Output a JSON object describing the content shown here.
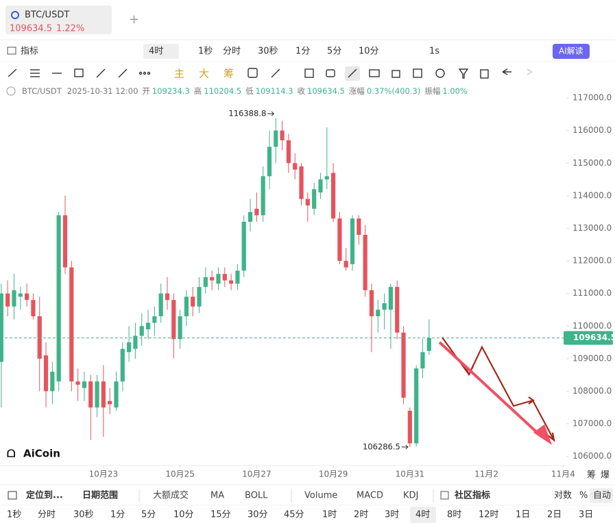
{
  "tab": {
    "symbol": "BTC/USDT",
    "price": "109634.5",
    "change": "1.22%"
  },
  "toolbar": {
    "indicator": "指标",
    "interval_button": "4时",
    "intervals": [
      "1秒",
      "分时",
      "30秒",
      "1分",
      "5分",
      "10分"
    ],
    "speed": "1s",
    "ai": "AI解读"
  },
  "draw_tools": [
    "主",
    "大",
    "筹"
  ],
  "info_bar": {
    "symbol": "BTC/USDT",
    "time": "2025-10-31 12:00",
    "fields": [
      {
        "label": "开",
        "value": "109234.3"
      },
      {
        "label": "高",
        "value": "110204.5"
      },
      {
        "label": "低",
        "value": "109114.3"
      },
      {
        "label": "收",
        "value": "109634.5"
      },
      {
        "label": "涨幅",
        "value": "0.37%(400.3)"
      },
      {
        "label": "振幅",
        "value": "1.00%"
      }
    ]
  },
  "chart_data": {
    "type": "candlestick",
    "up_color": "#3fb38a",
    "down_color": "#e5545d",
    "open": [
      108900,
      111000,
      110600,
      110900,
      111000,
      110800,
      110300,
      109100,
      108000,
      108300,
      113400,
      111800,
      108300,
      108100,
      108300,
      107500,
      108300,
      107700,
      107500,
      108300,
      109200,
      109300,
      109700,
      109900,
      110100,
      110300,
      111000,
      110800,
      109600,
      110300,
      110900,
      110600,
      111200,
      111500,
      111300,
      111600,
      111400,
      111300,
      111700,
      113200,
      113600,
      113400,
      114600,
      115500,
      116000,
      115700,
      115000,
      114900,
      113900,
      113600,
      114100,
      114500,
      114700,
      113300,
      112000,
      111900,
      113300,
      112800,
      111100,
      110300,
      110500,
      110500,
      111200,
      109800,
      107400,
      106400,
      108700,
      109234.3
    ],
    "high": [
      111300,
      111400,
      111600,
      111200,
      111300,
      111000,
      110900,
      109500,
      108900,
      113500,
      114000,
      112000,
      108700,
      108600,
      108500,
      108500,
      108800,
      108100,
      108600,
      109500,
      110000,
      110100,
      110400,
      110500,
      110600,
      111300,
      111500,
      111000,
      110500,
      111100,
      111200,
      111500,
      111800,
      111700,
      111800,
      111800,
      111600,
      111900,
      113400,
      113900,
      114100,
      114900,
      116000,
      116388.8,
      116300,
      115900,
      115300,
      115000,
      114100,
      114400,
      114700,
      116100,
      115000,
      113500,
      112400,
      113400,
      113400,
      113100,
      111300,
      110800,
      111000,
      111300,
      111400,
      110000,
      107500,
      108800,
      109600,
      110204.5
    ],
    "low": [
      107500,
      110300,
      110200,
      110500,
      110600,
      110200,
      108000,
      107500,
      107600,
      108000,
      111600,
      108000,
      107700,
      107700,
      106500,
      107200,
      106600,
      107300,
      107400,
      108000,
      108900,
      109000,
      109400,
      109600,
      109700,
      110100,
      110500,
      109000,
      109300,
      110000,
      110300,
      110400,
      111000,
      111100,
      111100,
      111200,
      111100,
      111100,
      111500,
      112900,
      113200,
      113200,
      114200,
      115000,
      115400,
      114700,
      114500,
      113700,
      113200,
      113400,
      113900,
      114200,
      113200,
      111900,
      111700,
      111700,
      112500,
      110900,
      109200,
      109800,
      109900,
      109300,
      109600,
      107600,
      106286.5,
      106300,
      108400,
      109114.3
    ],
    "close": [
      111000,
      110600,
      111100,
      111000,
      110800,
      110300,
      109000,
      108000,
      108600,
      113400,
      111800,
      108300,
      108200,
      108300,
      107500,
      108300,
      107500,
      107600,
      108300,
      109300,
      109500,
      109700,
      110000,
      110100,
      110300,
      111000,
      110800,
      109600,
      110300,
      110900,
      110600,
      111200,
      111500,
      111400,
      111600,
      111400,
      111300,
      111700,
      113200,
      113500,
      113400,
      114600,
      115500,
      116000,
      115700,
      115000,
      114800,
      113900,
      113700,
      114200,
      114500,
      114600,
      113300,
      112000,
      111800,
      113300,
      112800,
      111100,
      110300,
      110500,
      110700,
      111200,
      109800,
      107800,
      106400,
      108700,
      109200,
      109634.5
    ],
    "xlim": [
      -0.2,
      88.5
    ],
    "xticks": [
      {
        "value": 16,
        "label": "10月23"
      },
      {
        "value": 28,
        "label": "10月25"
      },
      {
        "value": 40,
        "label": "10月27"
      },
      {
        "value": 52,
        "label": "10月29"
      },
      {
        "value": 64,
        "label": "10月31"
      },
      {
        "value": 76,
        "label": "11月2"
      },
      {
        "value": 88,
        "label": "11月4"
      }
    ],
    "ylim": [
      105300,
      117380
    ],
    "yticks": [
      {
        "value": 106000,
        "label": "106000.0"
      },
      {
        "value": 107000,
        "label": "107000.0"
      },
      {
        "value": 108000,
        "label": "108000.0"
      },
      {
        "value": 109000,
        "label": "109000.0"
      },
      {
        "value": 110000,
        "label": "110000.0"
      },
      {
        "value": 111000,
        "label": "111000.0"
      },
      {
        "value": 112000,
        "label": "112000.0"
      },
      {
        "value": 113000,
        "label": "113000.0"
      },
      {
        "value": 114000,
        "label": "114000.0"
      },
      {
        "value": 115000,
        "label": "115000.0"
      },
      {
        "value": 116000,
        "label": "116000.0"
      },
      {
        "value": 117000,
        "label": "117000.0"
      }
    ],
    "last_price": 109634.5,
    "max_label": 116388.8,
    "min_label": 106286.5
  },
  "logo": "AiCoin",
  "axis_extra": [
    "筹",
    "爆"
  ],
  "bottom_bar": {
    "locate": "定位到...",
    "range": "日期范围",
    "indicators": [
      "大额成交",
      "MA",
      "BOLL",
      "Volume",
      "MACD",
      "KDJ"
    ],
    "community": "社区指标",
    "right": [
      "对数",
      "%",
      "自动"
    ]
  },
  "periods": [
    "1秒",
    "分时",
    "30秒",
    "1分",
    "5分",
    "10分",
    "15分",
    "30分",
    "45分",
    "1时",
    "2时",
    "3时",
    "4时",
    "8时",
    "12时",
    "1日",
    "2日",
    "3日"
  ]
}
